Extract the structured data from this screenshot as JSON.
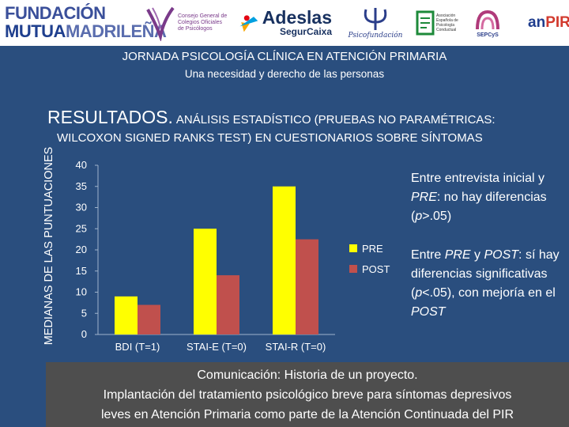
{
  "logos": {
    "fundacion_line1": "FUNDACIÓN",
    "fundacion_mutua": "MUTUA",
    "fundacion_madrilena": "MADRILEÑA",
    "consejo": "Consejo General de Colegios Oficiales de Psicólogos",
    "adeslas_name": "Adeslas",
    "adeslas_sub": "SegurCaixa",
    "psicofundacion": "Psicofundación",
    "aepc": "Asociación Española de Psicología Conductual",
    "sepcys": "SEPCyS",
    "anpir_an": "an",
    "anpir_pir": "PIR"
  },
  "header": {
    "title": "JORNADA PSICOLOGÍA CLÍNICA EN ATENCIÓN PRIMARIA",
    "subtitle": "Una necesidad y derecho de las personas"
  },
  "results": {
    "title_big": "RESULTADOS.",
    "title_small": "ANÁLISIS ESTADÍSTICO (PRUEBAS  NO PARAMÉTRICAS:",
    "title_line2": "WILCOXON SIGNED RANKS TEST) EN CUESTIONARIOS SOBRE SÍNTOMAS"
  },
  "chart_data": {
    "type": "bar",
    "title": "",
    "xlabel": "",
    "ylabel": "MEDIANAS DE LAS PUNTUACIONES",
    "categories": [
      "BDI (T=1)",
      "STAI-E (T=0)",
      "STAI-R (T=0)"
    ],
    "series": [
      {
        "name": "PRE",
        "values": [
          9,
          25,
          35
        ],
        "color": "#ffff00"
      },
      {
        "name": "POST",
        "values": [
          7,
          14,
          22.5
        ],
        "color": "#c0504d"
      }
    ],
    "ylim": [
      0,
      40
    ],
    "yticks": [
      0,
      5,
      10,
      15,
      20,
      25,
      30,
      35,
      40
    ],
    "legend_position": "right",
    "grid": false
  },
  "bullets": {
    "b1": [
      "Entre entrevista inicial y ",
      "PRE",
      ": no hay diferencias (",
      "p",
      ">.05)"
    ],
    "b2": [
      "Entre ",
      "PRE",
      " y ",
      "POST",
      ": sí hay diferencias significativas (",
      "p",
      "<.05), con mejoría en el ",
      "POST"
    ]
  },
  "footer": {
    "line1": "Comunicación: Historia de un proyecto.",
    "line2": "Implantación del tratamiento psicológico breve para síntomas depresivos",
    "line3": "leves en Atención Primaria como parte de la Atención Continuada del PIR"
  }
}
